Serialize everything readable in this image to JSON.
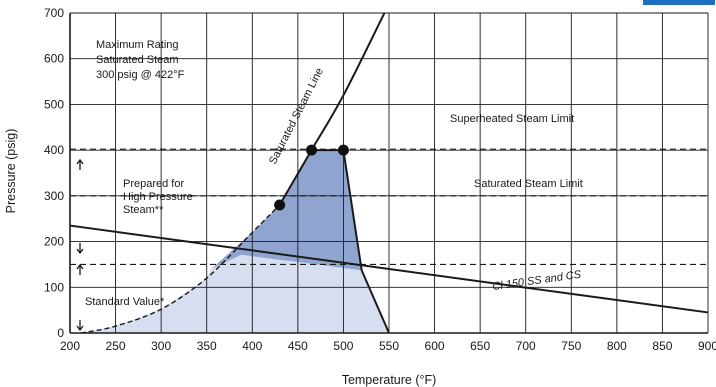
{
  "chart_data": {
    "type": "area",
    "xlabel": "Temperature (°F)",
    "ylabel": "Pressure (psig)",
    "xlim": [
      200,
      900
    ],
    "ylim": [
      0,
      700
    ],
    "x_ticks": [
      200,
      250,
      300,
      350,
      400,
      450,
      500,
      550,
      600,
      650,
      700,
      750,
      800,
      850,
      900
    ],
    "x_tick_labels": [
      "200",
      "250",
      "300",
      "350",
      "400",
      "450",
      "500",
      "550",
      "600",
      "650",
      "700",
      "750",
      "800",
      "850",
      "900"
    ],
    "y_ticks": [
      0,
      100,
      200,
      300,
      400,
      500,
      600,
      700
    ],
    "y_tick_labels": [
      "0",
      "100",
      "200",
      "300",
      "400",
      "500",
      "600",
      "700"
    ],
    "grid": true,
    "colors": {
      "axis": "#1a1a1a",
      "grid": "#1a1a1a",
      "high_pressure_fill": "#8fa5cf",
      "standard_fill": "#d7def0",
      "lines": "#1a1a1a",
      "header": "#1f6fc0"
    },
    "saturated_steam_line": {
      "label": "Saturated Steam Line",
      "points": [
        [
          212,
          0
        ],
        [
          250,
          15
        ],
        [
          300,
          52
        ],
        [
          350,
          120
        ],
        [
          400,
          220
        ],
        [
          430,
          280
        ],
        [
          465,
          400
        ],
        [
          500,
          520
        ],
        [
          545,
          700
        ]
      ]
    },
    "class_150_line": {
      "label": "Cl 150 SS and CS",
      "points": [
        [
          200,
          235
        ],
        [
          900,
          45
        ]
      ]
    },
    "high_pressure_region": {
      "name": "Prepared for High Pressure Steam**",
      "points": [
        [
          355,
          140
        ],
        [
          380,
          185
        ],
        [
          400,
          220
        ],
        [
          430,
          280
        ],
        [
          465,
          400
        ],
        [
          500,
          400
        ],
        [
          520,
          137
        ],
        [
          448,
          156
        ],
        [
          418,
          163
        ],
        [
          388,
          171
        ]
      ]
    },
    "standard_region": {
      "name": "Standard Value*",
      "points": [
        [
          212,
          0
        ],
        [
          250,
          15
        ],
        [
          300,
          52
        ],
        [
          350,
          120
        ],
        [
          355,
          140
        ],
        [
          388,
          171
        ],
        [
          418,
          163
        ],
        [
          448,
          156
        ],
        [
          520,
          137
        ],
        [
          550,
          0
        ]
      ]
    },
    "markers": [
      [
        430,
        280
      ],
      [
        465,
        400
      ],
      [
        500,
        400
      ]
    ],
    "reference_lines": [
      {
        "label": "Superheated Steam Limit",
        "y": 402
      },
      {
        "label": "Saturated Steam Limit",
        "y": 300
      },
      {
        "label": "",
        "y": 150
      }
    ],
    "annotations": {
      "max_rating": [
        "Maximum Rating",
        "Saturated Steam",
        "300 psig @ 422°F"
      ],
      "prepared": [
        "Prepared for",
        "High Pressure",
        "Steam**"
      ],
      "standard": "Standard Value*",
      "superheated": "Superheated Steam Limit",
      "saturated_limit": "Saturated Steam Limit",
      "sat_line": "Saturated Steam Line",
      "cl150": "Cl 150 SS and CS"
    }
  }
}
